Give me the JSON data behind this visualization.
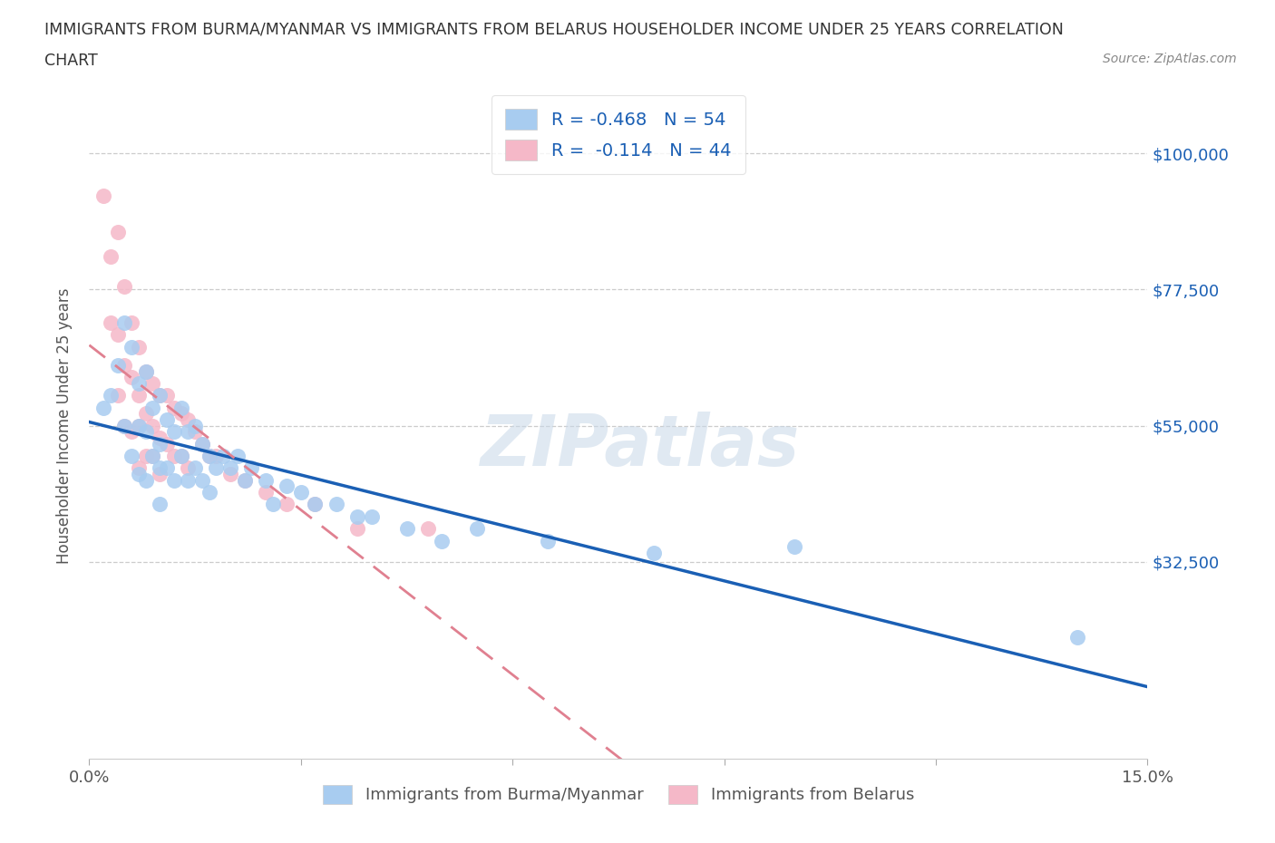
{
  "title_line1": "IMMIGRANTS FROM BURMA/MYANMAR VS IMMIGRANTS FROM BELARUS HOUSEHOLDER INCOME UNDER 25 YEARS CORRELATION",
  "title_line2": "CHART",
  "source": "Source: ZipAtlas.com",
  "ylabel": "Householder Income Under 25 years",
  "xlim": [
    0.0,
    0.15
  ],
  "ylim": [
    0,
    110000
  ],
  "ytick_positions": [
    0,
    32500,
    55000,
    77500,
    100000
  ],
  "ytick_labels": [
    "",
    "$32,500",
    "$55,000",
    "$77,500",
    "$100,000"
  ],
  "xtick_positions": [
    0.0,
    0.03,
    0.06,
    0.09,
    0.12,
    0.15
  ],
  "xtick_labels": [
    "0.0%",
    "",
    "",
    "",
    "",
    "15.0%"
  ],
  "color_burma": "#a8ccf0",
  "color_belarus": "#f5b8c8",
  "trendline_burma": "#1a5fb4",
  "trendline_belarus": "#e08090",
  "R_burma": -0.468,
  "N_burma": 54,
  "R_belarus": -0.114,
  "N_belarus": 44,
  "burma_x": [
    0.002,
    0.003,
    0.004,
    0.005,
    0.005,
    0.006,
    0.006,
    0.007,
    0.007,
    0.007,
    0.008,
    0.008,
    0.008,
    0.009,
    0.009,
    0.01,
    0.01,
    0.01,
    0.01,
    0.011,
    0.011,
    0.012,
    0.012,
    0.013,
    0.013,
    0.014,
    0.014,
    0.015,
    0.015,
    0.016,
    0.016,
    0.017,
    0.017,
    0.018,
    0.019,
    0.02,
    0.021,
    0.022,
    0.023,
    0.025,
    0.026,
    0.028,
    0.03,
    0.032,
    0.035,
    0.038,
    0.04,
    0.045,
    0.05,
    0.055,
    0.065,
    0.08,
    0.1,
    0.14
  ],
  "burma_y": [
    58000,
    60000,
    65000,
    72000,
    55000,
    68000,
    50000,
    62000,
    55000,
    47000,
    64000,
    54000,
    46000,
    58000,
    50000,
    60000,
    52000,
    48000,
    42000,
    56000,
    48000,
    54000,
    46000,
    58000,
    50000,
    54000,
    46000,
    55000,
    48000,
    52000,
    46000,
    50000,
    44000,
    48000,
    50000,
    48000,
    50000,
    46000,
    48000,
    46000,
    42000,
    45000,
    44000,
    42000,
    42000,
    40000,
    40000,
    38000,
    36000,
    38000,
    36000,
    34000,
    35000,
    20000
  ],
  "belarus_x": [
    0.002,
    0.003,
    0.003,
    0.004,
    0.004,
    0.004,
    0.005,
    0.005,
    0.005,
    0.006,
    0.006,
    0.006,
    0.007,
    0.007,
    0.007,
    0.007,
    0.008,
    0.008,
    0.008,
    0.009,
    0.009,
    0.009,
    0.01,
    0.01,
    0.01,
    0.011,
    0.011,
    0.012,
    0.012,
    0.013,
    0.013,
    0.014,
    0.014,
    0.015,
    0.016,
    0.017,
    0.018,
    0.02,
    0.022,
    0.025,
    0.028,
    0.032,
    0.038,
    0.048
  ],
  "belarus_y": [
    93000,
    83000,
    72000,
    87000,
    70000,
    60000,
    78000,
    65000,
    55000,
    72000,
    63000,
    54000,
    68000,
    60000,
    55000,
    48000,
    64000,
    57000,
    50000,
    62000,
    55000,
    50000,
    60000,
    53000,
    47000,
    60000,
    52000,
    58000,
    50000,
    57000,
    50000,
    56000,
    48000,
    54000,
    52000,
    50000,
    50000,
    47000,
    46000,
    44000,
    42000,
    42000,
    38000,
    38000
  ]
}
